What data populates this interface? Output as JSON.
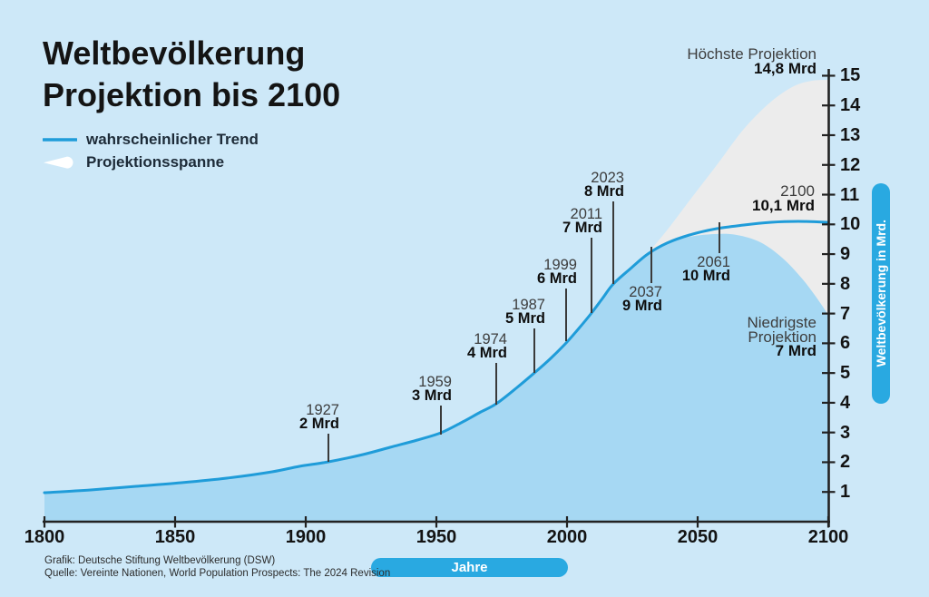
{
  "title": {
    "line1": "Weltbevölkerung",
    "line2": "Projektion bis 2100"
  },
  "legend": {
    "trend_label": "wahrscheinlicher Trend",
    "span_label": "Projektionsspanne"
  },
  "source": {
    "line1": "Grafik: Deutsche Stiftung Weltbevölkerung (DSW)",
    "line2": "Quelle: Vereinte Nationen, World Population Prospects: The 2024 Revision"
  },
  "colors": {
    "background": "#cde8f8",
    "area_fill": "#a6d8f3",
    "trend_line": "#1f9cd9",
    "projection_span": "#ececec",
    "pill_blue": "#29a9e1",
    "axis_dark": "#222222"
  },
  "chart_data": {
    "type": "area",
    "title": "Weltbevölkerung Projektion bis 2100",
    "xlabel": "Jahre",
    "ylabel": "Weltbevölkerung in Mrd.",
    "xlim": [
      1800,
      2100
    ],
    "ylim": [
      0,
      15
    ],
    "x_ticks": [
      1800,
      1850,
      1900,
      1950,
      2000,
      2050,
      2100
    ],
    "y_ticks": [
      1,
      2,
      3,
      4,
      5,
      6,
      7,
      8,
      9,
      10,
      11,
      12,
      13,
      14,
      15
    ],
    "grid": false,
    "legend_position": "top-left",
    "series": [
      {
        "name": "wahrscheinlicher Trend",
        "points": [
          [
            1800,
            1.0
          ],
          [
            1850,
            1.25
          ],
          [
            1900,
            1.65
          ],
          [
            1927,
            2
          ],
          [
            1959,
            3
          ],
          [
            1974,
            4
          ],
          [
            1987,
            5
          ],
          [
            1999,
            6
          ],
          [
            2011,
            7
          ],
          [
            2023,
            8
          ],
          [
            2037,
            9
          ],
          [
            2061,
            10
          ],
          [
            2100,
            10.1
          ]
        ]
      },
      {
        "name": "Projektionsspanne",
        "range_2100": {
          "high": 14.8,
          "low": 7.0
        }
      }
    ],
    "milestones": [
      {
        "year": "1927",
        "value": "2 Mrd"
      },
      {
        "year": "1959",
        "value": "3 Mrd"
      },
      {
        "year": "1974",
        "value": "4 Mrd"
      },
      {
        "year": "1987",
        "value": "5 Mrd"
      },
      {
        "year": "1999",
        "value": "6 Mrd"
      },
      {
        "year": "2011",
        "value": "7 Mrd"
      },
      {
        "year": "2023",
        "value": "8 Mrd"
      },
      {
        "year": "2037",
        "value": "9 Mrd"
      },
      {
        "year": "2061",
        "value": "10 Mrd"
      }
    ],
    "annotations": {
      "high": {
        "label": "Höchste Projektion",
        "value": "14,8 Mrd"
      },
      "low": {
        "label": "Niedrigste Projektion",
        "value": "7 Mrd"
      },
      "final": {
        "year": "2100",
        "value": "10,1 Mrd"
      }
    }
  }
}
